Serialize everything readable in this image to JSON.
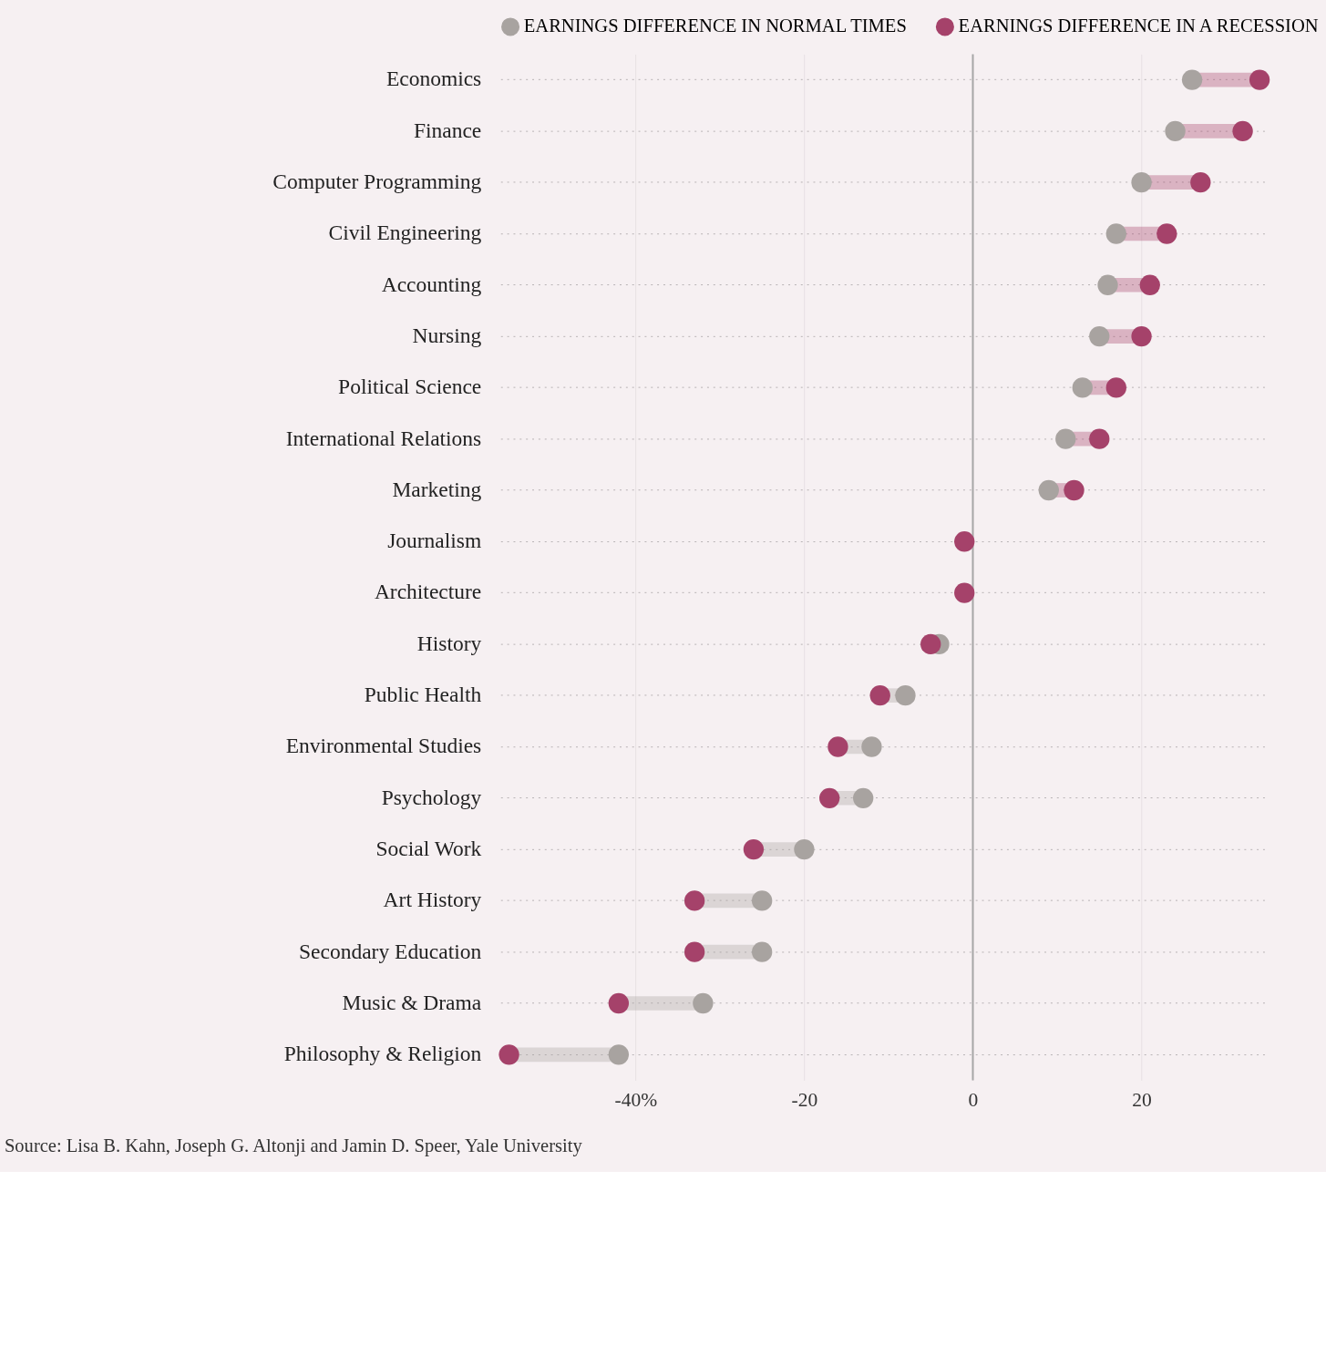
{
  "chart_data": {
    "type": "scatter",
    "orientation": "horizontal",
    "marker": "circle",
    "legend": "top left",
    "grid": true,
    "categories": [
      "Economics",
      "Finance",
      "Computer Programming",
      "Civil Engineering",
      "Accounting",
      "Nursing",
      "Political Science",
      "International Relations",
      "Marketing",
      "Journalism",
      "Architecture",
      "History",
      "Public Health",
      "Environmental Studies",
      "Psychology",
      "Social Work",
      "Art History",
      "Secondary Education",
      "Music & Drama",
      "Philosophy & Religion"
    ],
    "series": [
      {
        "name": "EARNINGS DIFFERENCE IN NORMAL TIMES",
        "color": "#a8a3a0",
        "values": [
          26,
          24,
          20,
          17,
          16,
          15,
          13,
          11,
          9,
          null,
          null,
          -4,
          -8,
          -12,
          -13,
          -20,
          -25,
          -25,
          -32,
          -42
        ]
      },
      {
        "name": "EARNINGS DIFFERENCE IN A RECESSION",
        "color": "#a5426a",
        "values": [
          34,
          32,
          27,
          23,
          21,
          20,
          17,
          15,
          12,
          -1,
          -1,
          -5,
          -11,
          -16,
          -17,
          -26,
          -33,
          -33,
          -42,
          -55
        ]
      }
    ],
    "xlim": [
      -56,
      35
    ],
    "xticks": [
      {
        "value": -40,
        "label": "-40%"
      },
      -20,
      0,
      20
    ],
    "ref_lines": [
      {
        "axis": "x",
        "value": 0,
        "color": "#a6a6a6"
      }
    ],
    "annotations": [
      "Source: Lisa B. Kahn, Joseph G. Altonji and Jamin D. Speer, Yale University"
    ]
  }
}
